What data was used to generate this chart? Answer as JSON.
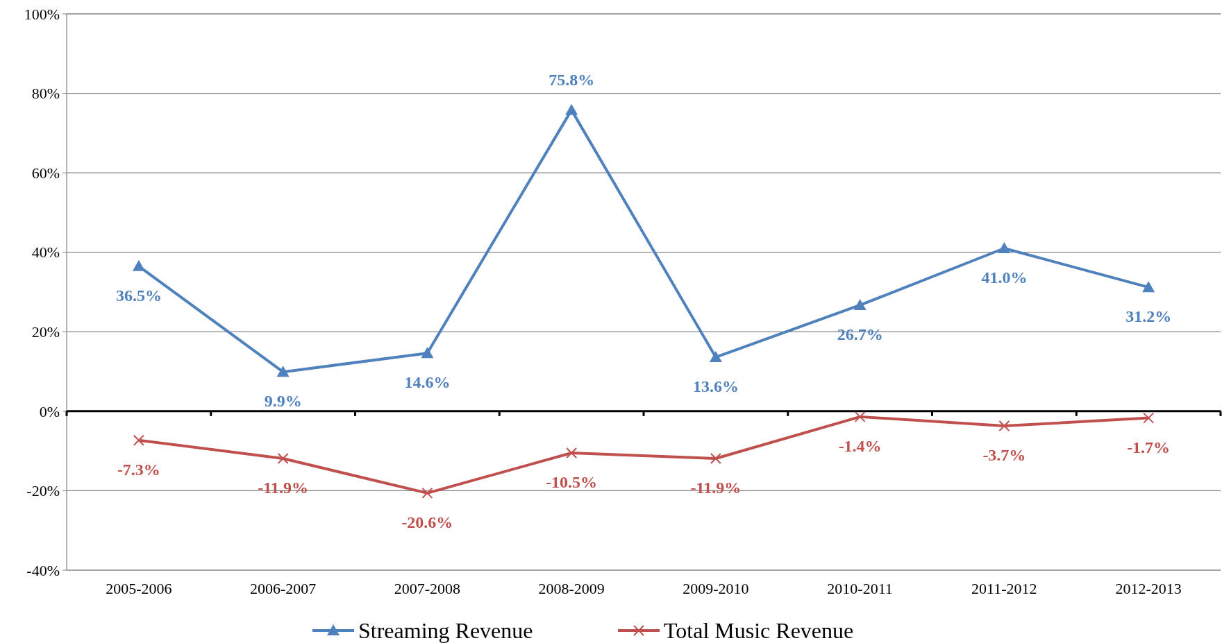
{
  "chart_data": {
    "type": "line",
    "categories": [
      "2005-2006",
      "2006-2007",
      "2007-2008",
      "2008-2009",
      "2009-2010",
      "2010-2011",
      "2011-2012",
      "2012-2013"
    ],
    "series": [
      {
        "name": "Streaming Revenue",
        "color": "#4f81bd",
        "marker": "triangle",
        "values": [
          36.5,
          9.9,
          14.6,
          75.8,
          13.6,
          26.7,
          41.0,
          31.2
        ],
        "value_labels": [
          "36.5%",
          "9.9%",
          "14.6%",
          "75.8%",
          "13.6%",
          "26.7%",
          "41.0%",
          "31.2%"
        ]
      },
      {
        "name": "Total Music Revenue",
        "color": "#c0504d",
        "marker": "cross",
        "values": [
          -7.3,
          -11.9,
          -20.6,
          -10.5,
          -11.9,
          -1.4,
          -3.7,
          -1.7
        ],
        "value_labels": [
          "-7.3%",
          "-11.9%",
          "-20.6%",
          "-10.5%",
          "-11.9%",
          "-1.4%",
          "-3.7%",
          "-1.7%"
        ]
      }
    ],
    "ylim": [
      -40,
      100
    ],
    "yticks": [
      {
        "value": -40,
        "label": "-40%"
      },
      {
        "value": -20,
        "label": "-20%"
      },
      {
        "value": 0,
        "label": "0%"
      },
      {
        "value": 20,
        "label": "20%"
      },
      {
        "value": 40,
        "label": "40%"
      },
      {
        "value": 60,
        "label": "60%"
      },
      {
        "value": 80,
        "label": "80%"
      },
      {
        "value": 100,
        "label": "100%"
      }
    ],
    "grid": "y",
    "legend": "bottom",
    "line_style": "solid"
  }
}
